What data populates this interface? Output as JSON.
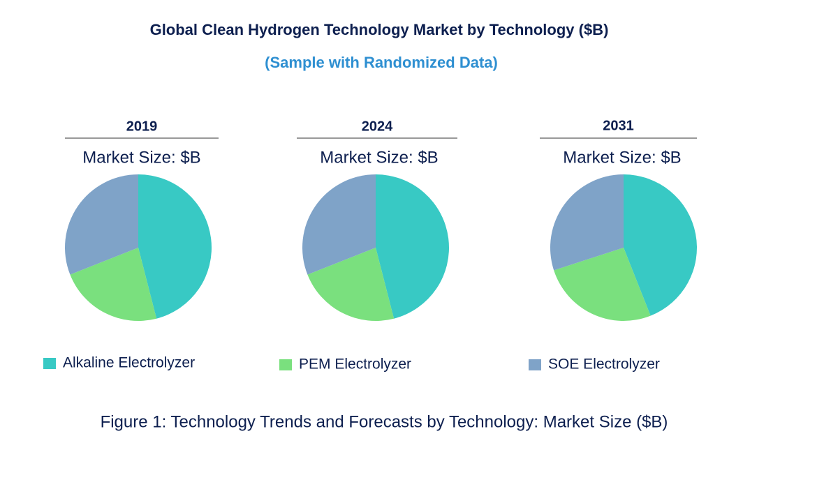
{
  "title": "Global Clean Hydrogen Technology Market by Technology ($B)",
  "subtitle": "(Sample with Randomized Data)",
  "caption": "Figure 1: Technology Trends and Forecasts by Technology: Market Size ($B)",
  "chart_data": [
    {
      "type": "pie",
      "title": "2019",
      "subtitle": "Market Size: $B",
      "categories": [
        "Alkaline Electrolyzer",
        "PEM Electrolyzer",
        "SOE Electrolyzer"
      ],
      "values": [
        46,
        23,
        31
      ],
      "colors": [
        "#38c9c4",
        "#7ae07e",
        "#7fa3c8"
      ]
    },
    {
      "type": "pie",
      "title": "2024",
      "subtitle": "Market Size: $B",
      "categories": [
        "Alkaline Electrolyzer",
        "PEM Electrolyzer",
        "SOE Electrolyzer"
      ],
      "values": [
        46,
        23,
        31
      ],
      "colors": [
        "#38c9c4",
        "#7ae07e",
        "#7fa3c8"
      ]
    },
    {
      "type": "pie",
      "title": "2031",
      "subtitle": "Market Size: $B",
      "categories": [
        "Alkaline Electrolyzer",
        "PEM Electrolyzer",
        "SOE Electrolyzer"
      ],
      "values": [
        44,
        26,
        30
      ],
      "colors": [
        "#38c9c4",
        "#7ae07e",
        "#7fa3c8"
      ]
    }
  ]
}
